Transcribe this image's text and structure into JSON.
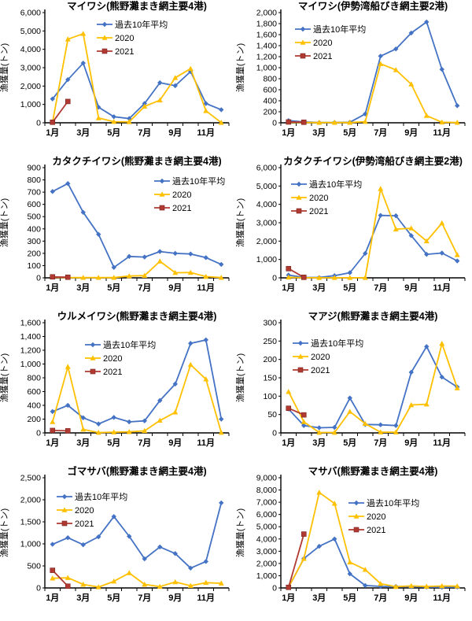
{
  "axis_color": "#000000",
  "background": "#ffffff",
  "chart_data": [
    {
      "type": "line",
      "title": "マイワシ(熊野灘まき網主要4港)",
      "ylabel": "漁獲量(トン)",
      "x_tick_labels": [
        "1月",
        "3月",
        "5月",
        "7月",
        "9月",
        "11月"
      ],
      "ylim": [
        0,
        6000
      ],
      "ytick": 1000,
      "legend_position": "inside-top-left",
      "legend_pos": [
        123,
        31
      ],
      "grid": false,
      "series": [
        {
          "name": "過去10年平均",
          "color": "#4472C4",
          "marker": "diamond",
          "values": [
            1300,
            2350,
            3250,
            850,
            330,
            230,
            1050,
            2180,
            2020,
            2790,
            1050,
            710
          ]
        },
        {
          "name": "2020",
          "color": "#FFC000",
          "marker": "triangle",
          "values": [
            30,
            4550,
            4850,
            260,
            60,
            50,
            890,
            1230,
            2450,
            2950,
            650,
            10
          ]
        },
        {
          "name": "2021",
          "color": "#B03A32",
          "marker": "square",
          "values": [
            30,
            1160
          ]
        }
      ]
    },
    {
      "type": "line",
      "title": "マイワシ(伊勢湾船びき網主要2港)",
      "ylabel": "漁獲量(トン)",
      "x_tick_labels": [
        "1月",
        "3月",
        "5月",
        "7月",
        "9月",
        "11月"
      ],
      "ylim": [
        0,
        2000
      ],
      "ytick": 200,
      "legend_position": "inside-top-left",
      "legend_pos": [
        75,
        37
      ],
      "grid": false,
      "series": [
        {
          "name": "過去10年平均",
          "color": "#4472C4",
          "marker": "diamond",
          "values": [
            40,
            15,
            5,
            5,
            10,
            160,
            1210,
            1340,
            1630,
            1830,
            970,
            310
          ]
        },
        {
          "name": "2020",
          "color": "#FFC000",
          "marker": "triangle",
          "values": [
            10,
            5,
            5,
            5,
            5,
            20,
            1070,
            960,
            700,
            130,
            10,
            5
          ]
        },
        {
          "name": "2021",
          "color": "#B03A32",
          "marker": "square",
          "values": [
            15,
            10
          ]
        }
      ]
    },
    {
      "type": "line",
      "title": "カタクチイワシ(熊野灘まき網主要4港)",
      "ylabel": "漁獲量(トン)",
      "x_tick_labels": [
        "1月",
        "3月",
        "5月",
        "7月",
        "9月",
        "11月"
      ],
      "ylim": [
        0,
        900
      ],
      "ytick": 100,
      "legend_position": "inside-top-right",
      "legend_pos": [
        196,
        33
      ],
      "grid": false,
      "series": [
        {
          "name": "過去10年平均",
          "color": "#4472C4",
          "marker": "diamond",
          "values": [
            705,
            770,
            535,
            355,
            85,
            175,
            170,
            215,
            200,
            195,
            165,
            110
          ]
        },
        {
          "name": "2020",
          "color": "#FFC000",
          "marker": "triangle",
          "values": [
            5,
            2,
            2,
            2,
            2,
            15,
            18,
            135,
            42,
            43,
            10,
            2
          ]
        },
        {
          "name": "2021",
          "color": "#B03A32",
          "marker": "square",
          "values": [
            8,
            5
          ]
        }
      ]
    },
    {
      "type": "line",
      "title": "カタクチイワシ(伊勢湾船びき網主要2港)",
      "ylabel": "漁獲量(トン)",
      "x_tick_labels": [
        "1月",
        "3月",
        "5月",
        "7月",
        "9月",
        "11月"
      ],
      "ylim": [
        0,
        6000
      ],
      "ytick": 1000,
      "legend_position": "inside-top-left",
      "legend_pos": [
        70,
        37
      ],
      "grid": false,
      "series": [
        {
          "name": "過去10年平均",
          "color": "#4472C4",
          "marker": "diamond",
          "values": [
            150,
            20,
            20,
            120,
            280,
            1330,
            3400,
            3380,
            2300,
            1280,
            1350,
            920
          ]
        },
        {
          "name": "2020",
          "color": "#FFC000",
          "marker": "triangle",
          "values": [
            30,
            5,
            5,
            5,
            5,
            10,
            4850,
            2650,
            2700,
            2000,
            2980,
            1250
          ]
        },
        {
          "name": "2021",
          "color": "#B03A32",
          "marker": "square",
          "values": [
            500,
            30
          ]
        }
      ]
    },
    {
      "type": "line",
      "title": "ウルメイワシ(熊野灘まき網主要4港)",
      "ylabel": "漁獲量(トン)",
      "x_tick_labels": [
        "1月",
        "3月",
        "5月",
        "7月",
        "9月",
        "11月"
      ],
      "ylim": [
        0,
        1600
      ],
      "ytick": 200,
      "legend_position": "inside-top-left",
      "legend_pos": [
        108,
        44
      ],
      "grid": false,
      "series": [
        {
          "name": "過去10年平均",
          "color": "#4472C4",
          "marker": "diamond",
          "values": [
            310,
            400,
            220,
            130,
            225,
            160,
            175,
            470,
            710,
            1300,
            1350,
            200
          ]
        },
        {
          "name": "2020",
          "color": "#FFC000",
          "marker": "triangle",
          "values": [
            160,
            960,
            50,
            5,
            10,
            15,
            30,
            180,
            300,
            990,
            780,
            5
          ]
        },
        {
          "name": "2021",
          "color": "#B03A32",
          "marker": "square",
          "values": [
            35,
            30
          ]
        }
      ]
    },
    {
      "type": "line",
      "title": "マアジ(熊野灘まき網主要4港)",
      "ylabel": "漁獲量(トン)",
      "x_tick_labels": [
        "1月",
        "3月",
        "5月",
        "7月",
        "9月",
        "11月"
      ],
      "ylim": [
        0,
        300
      ],
      "ytick": 50,
      "legend_position": "inside-top-left",
      "legend_pos": [
        72,
        42
      ],
      "grid": false,
      "series": [
        {
          "name": "過去10年平均",
          "color": "#4472C4",
          "marker": "diamond",
          "values": [
            65,
            20,
            14,
            15,
            95,
            23,
            22,
            20,
            165,
            235,
            152,
            125
          ]
        },
        {
          "name": "2020",
          "color": "#FFC000",
          "marker": "triangle",
          "values": [
            112,
            30,
            1,
            1,
            58,
            25,
            2,
            2,
            76,
            78,
            243,
            122
          ]
        },
        {
          "name": "2021",
          "color": "#B03A32",
          "marker": "square",
          "values": [
            67,
            49
          ]
        }
      ]
    },
    {
      "type": "line",
      "title": "ゴマサバ(熊野灘まき網主要4港)",
      "ylabel": "漁獲量(トン)",
      "x_tick_labels": [
        "1月",
        "3月",
        "5月",
        "7月",
        "9月",
        "11月"
      ],
      "ylim": [
        0,
        2500
      ],
      "ytick": 500,
      "legend_position": "inside-top-left",
      "legend_pos": [
        72,
        40
      ],
      "grid": false,
      "series": [
        {
          "name": "過去10年平均",
          "color": "#4472C4",
          "marker": "diamond",
          "values": [
            990,
            1140,
            980,
            1160,
            1620,
            1170,
            660,
            930,
            780,
            450,
            600,
            1930
          ]
        },
        {
          "name": "2020",
          "color": "#FFC000",
          "marker": "triangle",
          "values": [
            220,
            230,
            80,
            20,
            150,
            340,
            80,
            30,
            135,
            50,
            120,
            105
          ]
        },
        {
          "name": "2021",
          "color": "#B03A32",
          "marker": "square",
          "values": [
            400,
            40
          ]
        }
      ]
    },
    {
      "type": "line",
      "title": "マサバ(熊野灘まき網主要4港)",
      "ylabel": "漁獲量(トン)",
      "x_tick_labels": [
        "1月",
        "3月",
        "5月",
        "7月",
        "9月",
        "11月"
      ],
      "ylim": [
        0,
        9000
      ],
      "ytick": 1000,
      "legend_position": "inside-top-center",
      "legend_pos": [
        143,
        48
      ],
      "grid": false,
      "series": [
        {
          "name": "過去10年平均",
          "color": "#4472C4",
          "marker": "diamond",
          "values": [
            50,
            2400,
            3400,
            4000,
            1150,
            200,
            130,
            120,
            100,
            80,
            60,
            80
          ]
        },
        {
          "name": "2020",
          "color": "#FFC000",
          "marker": "triangle",
          "values": [
            50,
            2400,
            7800,
            6900,
            2100,
            1500,
            350,
            100,
            170,
            120,
            160,
            150
          ]
        },
        {
          "name": "2021",
          "color": "#B03A32",
          "marker": "square",
          "values": [
            50,
            4400
          ]
        }
      ]
    }
  ]
}
